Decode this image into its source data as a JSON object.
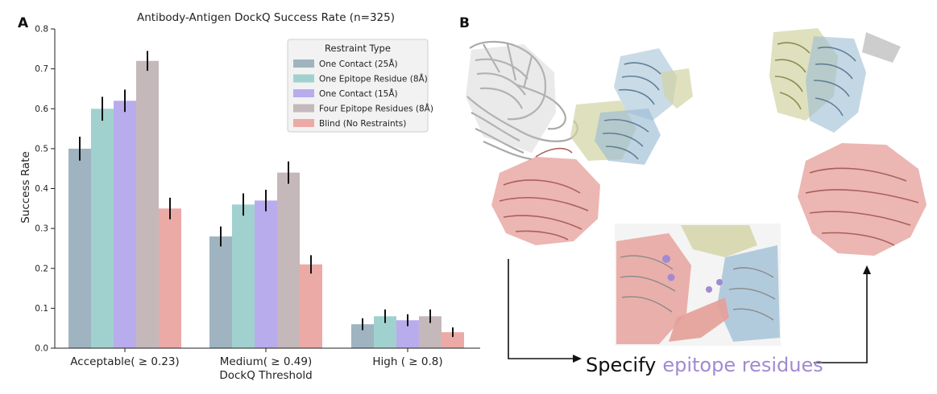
{
  "panel_labels": {
    "a": "A",
    "b": "B"
  },
  "colors": {
    "one_contact_25": "#9fb4c0",
    "one_epitope": "#a0d1cf",
    "one_contact_15": "#b9acec",
    "four_epitope": "#c5b8ba",
    "blind": "#ecaaa6",
    "protein_gray": "#b8b8b8",
    "protein_blue": "#9cbdd4",
    "protein_yellow": "#d2d3a3",
    "protein_salmon": "#e69e98",
    "epitope_purple": "#a18ad2"
  },
  "chart_data": {
    "type": "bar",
    "title": "Antibody-Antigen DockQ Success Rate (n=325)",
    "xlabel": "DockQ Threshold",
    "ylabel": "Success Rate",
    "ylim": [
      0,
      0.8
    ],
    "yticks": [
      "0.0",
      "0.1",
      "0.2",
      "0.3",
      "0.4",
      "0.5",
      "0.6",
      "0.7",
      "0.8"
    ],
    "categories": [
      "Acceptable( ≥ 0.23)",
      "Medium( ≥ 0.49)",
      "High ( ≥ 0.8)"
    ],
    "legend_title": "Restraint Type",
    "legend_position": "top-right",
    "series": [
      {
        "name": "One Contact (25Å)",
        "color": "#9fb4c0",
        "values": [
          0.5,
          0.28,
          0.06
        ],
        "err": [
          0.03,
          0.025,
          0.015
        ]
      },
      {
        "name": "One Epitope Residue (8Å)",
        "color": "#a0d1cf",
        "values": [
          0.6,
          0.36,
          0.08
        ],
        "err": [
          0.03,
          0.028,
          0.017
        ]
      },
      {
        "name": "One Contact (15Å)",
        "color": "#b9acec",
        "values": [
          0.62,
          0.37,
          0.07
        ],
        "err": [
          0.028,
          0.027,
          0.015
        ]
      },
      {
        "name": "Four Epitope Residues (8Å)",
        "color": "#c5b8ba",
        "values": [
          0.72,
          0.44,
          0.08
        ],
        "err": [
          0.025,
          0.028,
          0.017
        ]
      },
      {
        "name": "Blind (No Restraints)",
        "color": "#ecaaa6",
        "values": [
          0.35,
          0.21,
          0.04
        ],
        "err": [
          0.027,
          0.023,
          0.012
        ]
      }
    ]
  },
  "panel_b": {
    "specify_prefix": "Specify",
    "specify_highlight": "epitope residues"
  }
}
